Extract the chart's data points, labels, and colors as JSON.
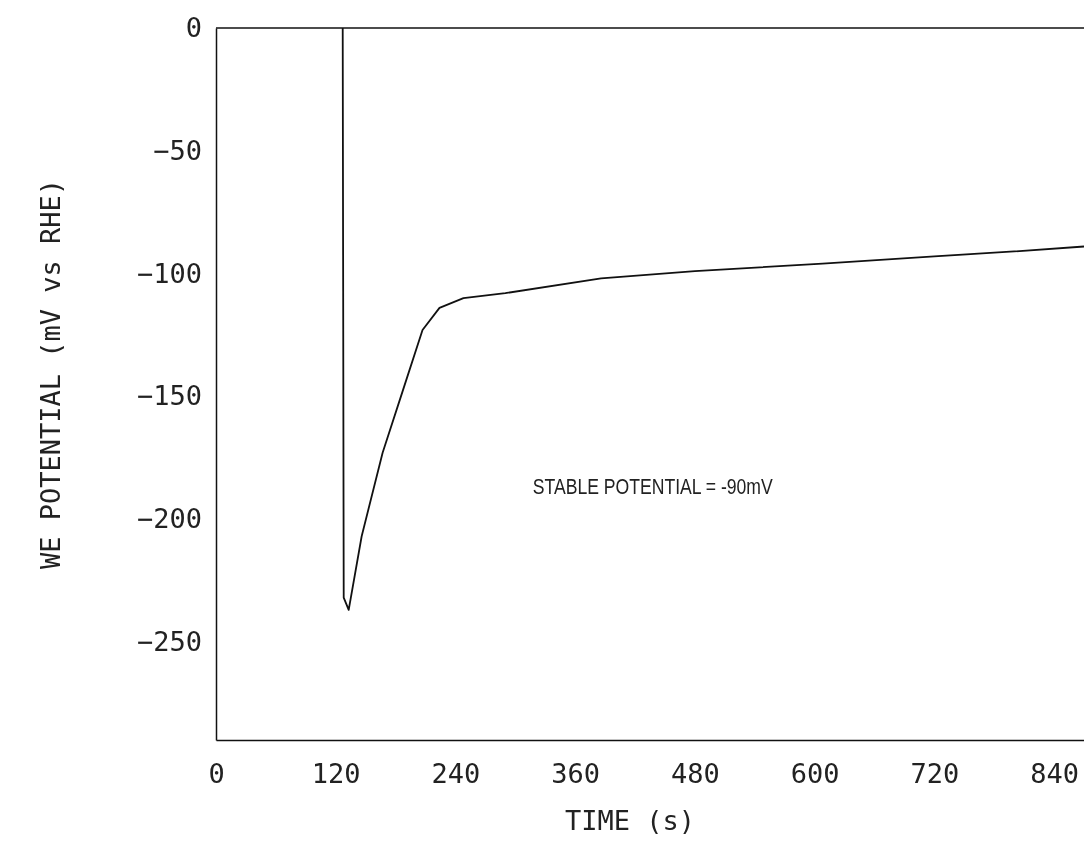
{
  "chart_data": {
    "type": "line",
    "xlabel": "TIME  (s)",
    "ylabel": "WE POTENTIAL  (mV vs RHE)",
    "x": [
      127,
      128,
      133,
      146,
      167,
      187,
      207,
      224,
      248,
      290,
      386,
      480,
      608,
      720,
      800,
      870
    ],
    "values": [
      0,
      -232,
      -237,
      -207,
      -173,
      -148,
      -123,
      -114,
      -110,
      -108,
      -102,
      -99,
      -96,
      -93,
      -91,
      -89
    ],
    "color": "#111111",
    "line_style": "solid",
    "marker": "none",
    "grid": false,
    "xlim": [
      0,
      870
    ],
    "ylim": [
      -290,
      0
    ],
    "xticks": [
      0,
      120,
      240,
      360,
      480,
      600,
      720,
      840
    ],
    "yticks": [
      0,
      -50,
      -100,
      -150,
      -200,
      -250
    ],
    "annotations": [
      "STABLE POTENTIAL = -90mV"
    ]
  }
}
